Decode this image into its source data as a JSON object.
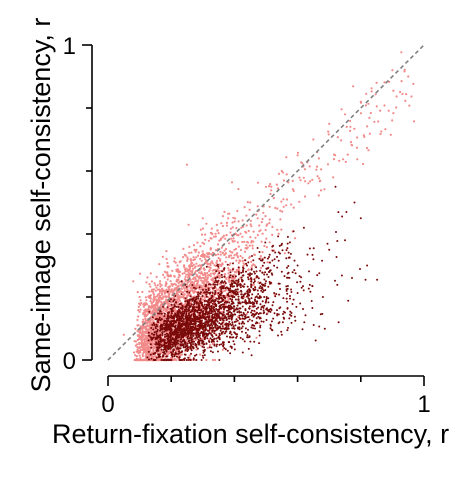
{
  "chart_data": {
    "type": "scatter",
    "xlabel": "Return-fixation self-consistency, r",
    "ylabel": "Same-image self-consistency, r",
    "xlim": [
      0,
      1
    ],
    "ylim": [
      0,
      1
    ],
    "x_ticks": [
      0,
      1
    ],
    "y_ticks": [
      0,
      1
    ],
    "minor_ticks": [
      0.2,
      0.4,
      0.6,
      0.8
    ],
    "reference_line": {
      "style": "dashed",
      "color": "#808080",
      "from": [
        0,
        0
      ],
      "to": [
        1,
        1
      ]
    },
    "grid": false,
    "series": [
      {
        "color": "#f28b8b",
        "values_sample": [
          [
            0.12,
            0.1
          ],
          [
            0.15,
            0.14
          ],
          [
            0.18,
            0.22
          ],
          [
            0.2,
            0.15
          ],
          [
            0.22,
            0.3
          ],
          [
            0.25,
            0.2
          ],
          [
            0.28,
            0.35
          ],
          [
            0.3,
            0.25
          ],
          [
            0.33,
            0.4
          ],
          [
            0.35,
            0.3
          ],
          [
            0.38,
            0.45
          ],
          [
            0.4,
            0.35
          ],
          [
            0.45,
            0.5
          ],
          [
            0.5,
            0.55
          ],
          [
            0.55,
            0.6
          ],
          [
            0.6,
            0.65
          ],
          [
            0.65,
            0.7
          ],
          [
            0.7,
            0.75
          ],
          [
            0.75,
            0.78
          ],
          [
            0.8,
            0.82
          ],
          [
            0.85,
            0.88
          ],
          [
            0.9,
            0.92
          ],
          [
            0.95,
            0.9
          ],
          [
            0.25,
            0.62
          ],
          [
            0.1,
            0.2
          ],
          [
            0.08,
            0.25
          ],
          [
            0.05,
            0.08
          ],
          [
            0.3,
            0.45
          ],
          [
            0.18,
            0.28
          ],
          [
            0.14,
            0.05
          ]
        ]
      },
      {
        "color": "#7a0a0a",
        "values_sample": [
          [
            0.15,
            0.05
          ],
          [
            0.2,
            0.08
          ],
          [
            0.25,
            0.12
          ],
          [
            0.3,
            0.15
          ],
          [
            0.35,
            0.18
          ],
          [
            0.4,
            0.2
          ],
          [
            0.45,
            0.22
          ],
          [
            0.5,
            0.25
          ],
          [
            0.55,
            0.28
          ],
          [
            0.6,
            0.3
          ],
          [
            0.65,
            0.32
          ],
          [
            0.7,
            0.35
          ],
          [
            0.75,
            0.38
          ],
          [
            0.8,
            0.45
          ],
          [
            0.78,
            0.5
          ],
          [
            0.72,
            0.55
          ],
          [
            0.62,
            0.42
          ],
          [
            0.52,
            0.36
          ],
          [
            0.44,
            0.3
          ],
          [
            0.36,
            0.27
          ],
          [
            0.28,
            0.1
          ],
          [
            0.22,
            0.04
          ],
          [
            0.18,
            0.02
          ],
          [
            0.33,
            0.06
          ],
          [
            0.47,
            0.12
          ],
          [
            0.58,
            0.14
          ],
          [
            0.68,
            0.2
          ],
          [
            0.82,
            0.3
          ],
          [
            0.4,
            0.05
          ],
          [
            0.55,
            0.08
          ]
        ]
      }
    ]
  }
}
